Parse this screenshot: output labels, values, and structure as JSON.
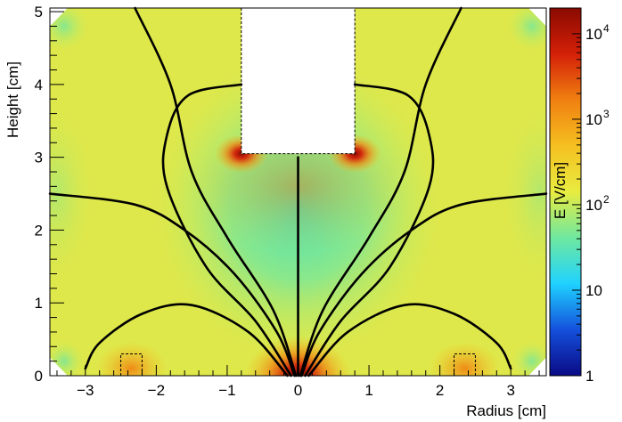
{
  "chart_data": {
    "type": "heatmap",
    "xlabel": "Radius [cm]",
    "ylabel": "Height [cm]",
    "xlim": [
      -3.5,
      3.5
    ],
    "ylim": [
      0,
      5.05
    ],
    "x_ticks": [
      "−3",
      "−2",
      "−1",
      "0",
      "1",
      "2",
      "3"
    ],
    "x_tick_values": [
      -3,
      -2,
      -1,
      0,
      1,
      2,
      3
    ],
    "y_ticks": [
      "0",
      "1",
      "2",
      "3",
      "4",
      "5"
    ],
    "y_tick_values": [
      0,
      1,
      2,
      3,
      4,
      5
    ],
    "colorbar": {
      "label": "E [V/cm]",
      "scale": "log",
      "range": [
        1,
        20000
      ],
      "ticks": [
        "1",
        "10",
        "10",
        "10",
        "10"
      ],
      "tick_exponents": [
        "",
        "",
        "2",
        "3",
        "4"
      ],
      "tick_values": [
        1,
        10,
        100,
        1000,
        10000
      ],
      "colors": [
        "#0a0a85",
        "#1450dc",
        "#1fd2ff",
        "#6fe8a0",
        "#e8ec40",
        "#f5c020",
        "#f08010",
        "#d42008",
        "#8a0a00"
      ]
    },
    "electrode_top": {
      "r_range": [
        -0.8,
        0.8
      ],
      "z_range": [
        3.05,
        5.05
      ]
    },
    "corner_cuts": {
      "r_inner": 3.25,
      "r_outer": 3.5,
      "z_low": 0.25,
      "z_high": 4.8
    },
    "electrodes_bottom": [
      {
        "r_range": [
          -2.5,
          -2.2
        ],
        "z_range": [
          0,
          0.3
        ]
      },
      {
        "r_range": [
          2.2,
          2.5
        ],
        "z_range": [
          0,
          0.3
        ]
      }
    ],
    "field_lines": [
      {
        "name": "",
        "points": [
          [
            0,
            0
          ],
          [
            0,
            3.0
          ]
        ]
      },
      {
        "name": "",
        "points": [
          [
            -0.05,
            0
          ],
          [
            -0.3,
            0.6
          ],
          [
            -0.9,
            1.4
          ],
          [
            -1.6,
            2.0
          ],
          [
            -2.3,
            2.35
          ],
          [
            -3.5,
            2.5
          ]
        ]
      },
      {
        "name": "",
        "points": [
          [
            0.05,
            0
          ],
          [
            0.3,
            0.6
          ],
          [
            0.9,
            1.4
          ],
          [
            1.6,
            2.0
          ],
          [
            2.3,
            2.35
          ],
          [
            3.5,
            2.5
          ]
        ]
      },
      {
        "name": "",
        "points": [
          [
            -0.1,
            0
          ],
          [
            -0.6,
            0.75
          ],
          [
            -1.3,
            1.5
          ],
          [
            -1.85,
            2.6
          ],
          [
            -1.85,
            3.3
          ],
          [
            -1.55,
            3.85
          ],
          [
            -0.8,
            4.0
          ]
        ]
      },
      {
        "name": "",
        "points": [
          [
            0.1,
            0
          ],
          [
            0.6,
            0.75
          ],
          [
            1.3,
            1.5
          ],
          [
            1.85,
            2.6
          ],
          [
            1.85,
            3.3
          ],
          [
            1.55,
            3.85
          ],
          [
            0.8,
            4.0
          ]
        ]
      },
      {
        "name": "",
        "points": [
          [
            -0.03,
            0
          ],
          [
            -0.35,
            0.9
          ],
          [
            -1.0,
            1.9
          ],
          [
            -1.5,
            2.8
          ],
          [
            -1.8,
            4.0
          ],
          [
            -2.3,
            5.05
          ]
        ]
      },
      {
        "name": "",
        "points": [
          [
            0.03,
            0
          ],
          [
            0.35,
            0.9
          ],
          [
            1.0,
            1.9
          ],
          [
            1.5,
            2.8
          ],
          [
            1.8,
            4.0
          ],
          [
            2.3,
            5.05
          ]
        ]
      },
      {
        "name": "",
        "points": [
          [
            -0.15,
            0
          ],
          [
            -0.7,
            0.6
          ],
          [
            -1.5,
            0.97
          ],
          [
            -2.2,
            0.85
          ],
          [
            -2.8,
            0.45
          ],
          [
            -3.0,
            0.1
          ]
        ]
      },
      {
        "name": "",
        "points": [
          [
            0.15,
            0
          ],
          [
            0.7,
            0.6
          ],
          [
            1.5,
            0.97
          ],
          [
            2.2,
            0.85
          ],
          [
            2.8,
            0.45
          ],
          [
            3.0,
            0.1
          ]
        ]
      }
    ]
  }
}
